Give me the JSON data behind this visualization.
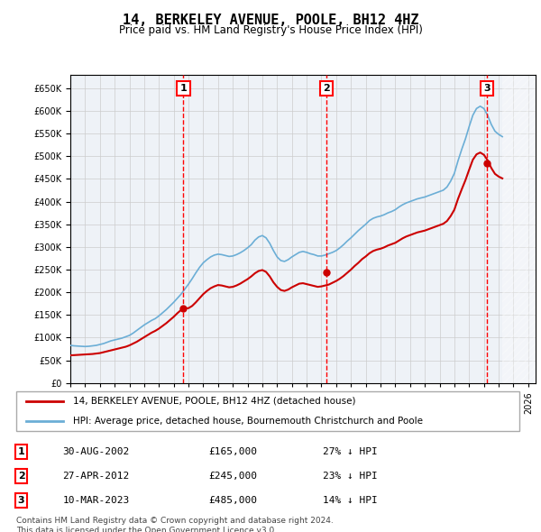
{
  "title": "14, BERKELEY AVENUE, POOLE, BH12 4HZ",
  "subtitle": "Price paid vs. HM Land Registry's House Price Index (HPI)",
  "xlabel": "",
  "ylabel": "",
  "ylim": [
    0,
    680000
  ],
  "yticks": [
    0,
    50000,
    100000,
    150000,
    200000,
    250000,
    300000,
    350000,
    400000,
    450000,
    500000,
    550000,
    600000,
    650000
  ],
  "xlim_start": 1995.0,
  "xlim_end": 2026.5,
  "bg_color": "#f0f4f8",
  "plot_bg_color": "#f0f4f8",
  "grid_color": "#cccccc",
  "legend_label_red": "14, BERKELEY AVENUE, POOLE, BH12 4HZ (detached house)",
  "legend_label_blue": "HPI: Average price, detached house, Bournemouth Christchurch and Poole",
  "footer": "Contains HM Land Registry data © Crown copyright and database right 2024.\nThis data is licensed under the Open Government Licence v3.0.",
  "transactions": [
    {
      "num": 1,
      "date": "30-AUG-2002",
      "price": 165000,
      "pct": "27% ↓ HPI",
      "x": 2002.66
    },
    {
      "num": 2,
      "date": "27-APR-2012",
      "price": 245000,
      "pct": "23% ↓ HPI",
      "x": 2012.32
    },
    {
      "num": 3,
      "date": "10-MAR-2023",
      "price": 485000,
      "pct": "14% ↓ HPI",
      "x": 2023.19
    }
  ],
  "hpi_x": [
    1995.0,
    1995.25,
    1995.5,
    1995.75,
    1996.0,
    1996.25,
    1996.5,
    1996.75,
    1997.0,
    1997.25,
    1997.5,
    1997.75,
    1998.0,
    1998.25,
    1998.5,
    1998.75,
    1999.0,
    1999.25,
    1999.5,
    1999.75,
    2000.0,
    2000.25,
    2000.5,
    2000.75,
    2001.0,
    2001.25,
    2001.5,
    2001.75,
    2002.0,
    2002.25,
    2002.5,
    2002.75,
    2003.0,
    2003.25,
    2003.5,
    2003.75,
    2004.0,
    2004.25,
    2004.5,
    2004.75,
    2005.0,
    2005.25,
    2005.5,
    2005.75,
    2006.0,
    2006.25,
    2006.5,
    2006.75,
    2007.0,
    2007.25,
    2007.5,
    2007.75,
    2008.0,
    2008.25,
    2008.5,
    2008.75,
    2009.0,
    2009.25,
    2009.5,
    2009.75,
    2010.0,
    2010.25,
    2010.5,
    2010.75,
    2011.0,
    2011.25,
    2011.5,
    2011.75,
    2012.0,
    2012.25,
    2012.5,
    2012.75,
    2013.0,
    2013.25,
    2013.5,
    2013.75,
    2014.0,
    2014.25,
    2014.5,
    2014.75,
    2015.0,
    2015.25,
    2015.5,
    2015.75,
    2016.0,
    2016.25,
    2016.5,
    2016.75,
    2017.0,
    2017.25,
    2017.5,
    2017.75,
    2018.0,
    2018.25,
    2018.5,
    2018.75,
    2019.0,
    2019.25,
    2019.5,
    2019.75,
    2020.0,
    2020.25,
    2020.5,
    2020.75,
    2021.0,
    2021.25,
    2021.5,
    2021.75,
    2022.0,
    2022.25,
    2022.5,
    2022.75,
    2023.0,
    2023.25,
    2023.5,
    2023.75,
    2024.0,
    2024.25
  ],
  "hpi_y": [
    83000,
    82000,
    81500,
    81000,
    80500,
    81000,
    82000,
    83000,
    85000,
    87000,
    90000,
    93000,
    95000,
    97000,
    99000,
    102000,
    105000,
    110000,
    116000,
    122000,
    128000,
    133000,
    138000,
    142000,
    148000,
    155000,
    162000,
    170000,
    178000,
    187000,
    196000,
    207000,
    218000,
    230000,
    243000,
    255000,
    265000,
    272000,
    278000,
    282000,
    284000,
    283000,
    281000,
    279000,
    280000,
    283000,
    287000,
    292000,
    298000,
    305000,
    315000,
    322000,
    325000,
    320000,
    308000,
    292000,
    278000,
    270000,
    268000,
    272000,
    278000,
    283000,
    288000,
    290000,
    288000,
    285000,
    283000,
    280000,
    280000,
    282000,
    285000,
    288000,
    292000,
    298000,
    305000,
    313000,
    320000,
    328000,
    336000,
    343000,
    350000,
    358000,
    363000,
    366000,
    368000,
    371000,
    375000,
    378000,
    382000,
    388000,
    393000,
    397000,
    400000,
    403000,
    406000,
    408000,
    410000,
    413000,
    416000,
    419000,
    422000,
    425000,
    432000,
    445000,
    462000,
    490000,
    515000,
    538000,
    565000,
    590000,
    605000,
    610000,
    605000,
    590000,
    570000,
    555000,
    548000,
    543000
  ],
  "price_x": [
    1995.0,
    1995.25,
    1995.5,
    1995.75,
    1996.0,
    1996.25,
    1996.5,
    1996.75,
    1997.0,
    1997.25,
    1997.5,
    1997.75,
    1998.0,
    1998.25,
    1998.5,
    1998.75,
    1999.0,
    1999.25,
    1999.5,
    1999.75,
    2000.0,
    2000.25,
    2000.5,
    2000.75,
    2001.0,
    2001.25,
    2001.5,
    2001.75,
    2002.0,
    2002.25,
    2002.5,
    2002.75,
    2003.0,
    2003.25,
    2003.5,
    2003.75,
    2004.0,
    2004.25,
    2004.5,
    2004.75,
    2005.0,
    2005.25,
    2005.5,
    2005.75,
    2006.0,
    2006.25,
    2006.5,
    2006.75,
    2007.0,
    2007.25,
    2007.5,
    2007.75,
    2008.0,
    2008.25,
    2008.5,
    2008.75,
    2009.0,
    2009.25,
    2009.5,
    2009.75,
    2010.0,
    2010.25,
    2010.5,
    2010.75,
    2011.0,
    2011.25,
    2011.5,
    2011.75,
    2012.0,
    2012.25,
    2012.5,
    2012.75,
    2013.0,
    2013.25,
    2013.5,
    2013.75,
    2014.0,
    2014.25,
    2014.5,
    2014.75,
    2015.0,
    2015.25,
    2015.5,
    2015.75,
    2016.0,
    2016.25,
    2016.5,
    2016.75,
    2017.0,
    2017.25,
    2017.5,
    2017.75,
    2018.0,
    2018.25,
    2018.5,
    2018.75,
    2019.0,
    2019.25,
    2019.5,
    2019.75,
    2020.0,
    2020.25,
    2020.5,
    2020.75,
    2021.0,
    2021.25,
    2021.5,
    2021.75,
    2022.0,
    2022.25,
    2022.5,
    2022.75,
    2023.0,
    2023.25,
    2023.5,
    2023.75,
    2024.0,
    2024.25
  ],
  "price_y": [
    61000,
    61500,
    62000,
    62500,
    63000,
    63500,
    64000,
    65000,
    66000,
    68000,
    70000,
    72000,
    74000,
    76000,
    78000,
    80000,
    83000,
    87000,
    91000,
    96000,
    101000,
    106000,
    111000,
    115000,
    120000,
    126000,
    132000,
    139000,
    146000,
    154000,
    161000,
    165000,
    165000,
    170000,
    178000,
    187000,
    196000,
    203000,
    209000,
    213000,
    216000,
    215000,
    213000,
    211000,
    212000,
    215000,
    219000,
    224000,
    229000,
    235000,
    242000,
    247000,
    249000,
    245000,
    235000,
    222000,
    212000,
    205000,
    203000,
    206000,
    211000,
    215000,
    219000,
    220000,
    218000,
    216000,
    214000,
    212000,
    213000,
    215000,
    217000,
    221000,
    225000,
    230000,
    236000,
    243000,
    250000,
    258000,
    265000,
    273000,
    279000,
    286000,
    291000,
    294000,
    296000,
    299000,
    303000,
    306000,
    309000,
    314000,
    319000,
    323000,
    326000,
    329000,
    332000,
    334000,
    336000,
    339000,
    342000,
    345000,
    348000,
    351000,
    357000,
    368000,
    382000,
    406000,
    427000,
    447000,
    470000,
    492000,
    504000,
    508000,
    503000,
    491000,
    474000,
    461000,
    455000,
    451000
  ]
}
